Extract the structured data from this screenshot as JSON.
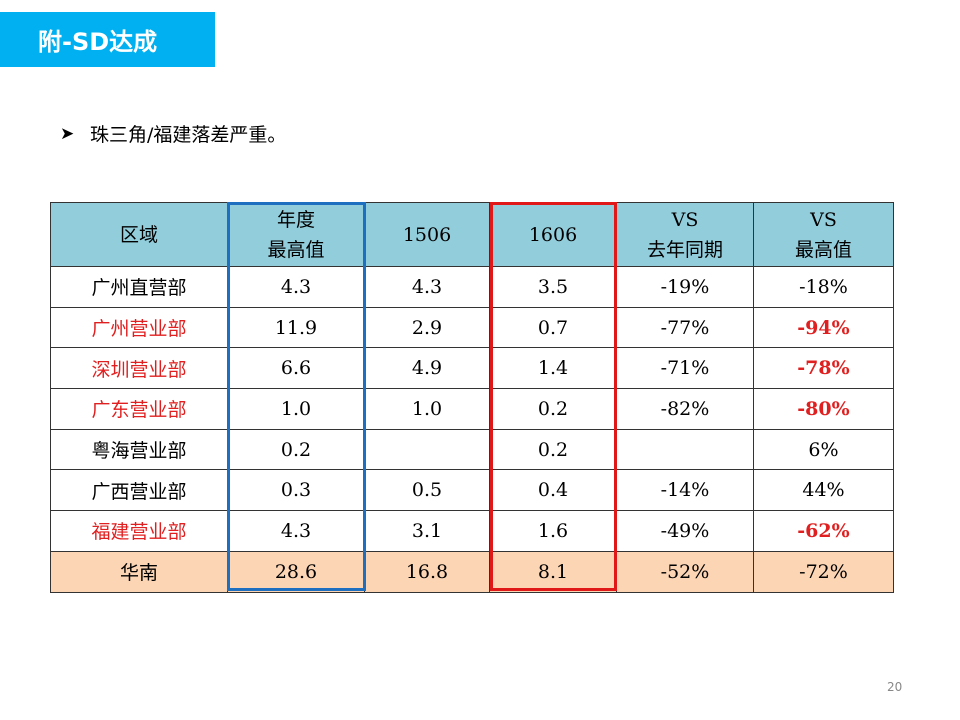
{
  "title": "附-SD达成",
  "bullet": {
    "icon": "arrowhead-bullet-icon",
    "text": "珠三角/福建落差严重。"
  },
  "table": {
    "headers": [
      {
        "line1": "区域",
        "line2": ""
      },
      {
        "line1": "年度",
        "line2": "最高值"
      },
      {
        "line1": "1506",
        "line2": ""
      },
      {
        "line1": "1606",
        "line2": ""
      },
      {
        "line1": "VS",
        "line2": "去年同期"
      },
      {
        "line1": "VS",
        "line2": "最高值"
      }
    ],
    "rows": [
      {
        "region": "广州直营部",
        "annual_max": "4.3",
        "v1506": "4.3",
        "v1606": "3.5",
        "vs_last_year": "-19%",
        "vs_max": "-18%"
      },
      {
        "region": "广州营业部",
        "annual_max": "11.9",
        "v1506": "2.9",
        "v1606": "0.7",
        "vs_last_year": "-77%",
        "vs_max": "-94%"
      },
      {
        "region": "深圳营业部",
        "annual_max": "6.6",
        "v1506": "4.9",
        "v1606": "1.4",
        "vs_last_year": "-71%",
        "vs_max": "-78%"
      },
      {
        "region": "广东营业部",
        "annual_max": "1.0",
        "v1506": "1.0",
        "v1606": "0.2",
        "vs_last_year": "-82%",
        "vs_max": "-80%"
      },
      {
        "region": "粤海营业部",
        "annual_max": "0.2",
        "v1506": "",
        "v1606": "0.2",
        "vs_last_year": "",
        "vs_max": "6%"
      },
      {
        "region": "广西营业部",
        "annual_max": "0.3",
        "v1506": "0.5",
        "v1606": "0.4",
        "vs_last_year": "-14%",
        "vs_max": "44%"
      },
      {
        "region": "福建营业部",
        "annual_max": "4.3",
        "v1506": "3.1",
        "v1606": "1.6",
        "vs_last_year": "-49%",
        "vs_max": "-62%"
      }
    ],
    "total": {
      "region": "华南",
      "annual_max": "28.6",
      "v1506": "16.8",
      "v1606": "8.1",
      "vs_last_year": "-52%",
      "vs_max": "-72%"
    }
  },
  "colors": {
    "title_bg": "#00B0F0",
    "header_bg": "#92CDDC",
    "total_bg": "#FCD5B5",
    "highlight_red": "#E02020",
    "highlight_blue_border": "#1F6FC0"
  },
  "page_number": "20"
}
